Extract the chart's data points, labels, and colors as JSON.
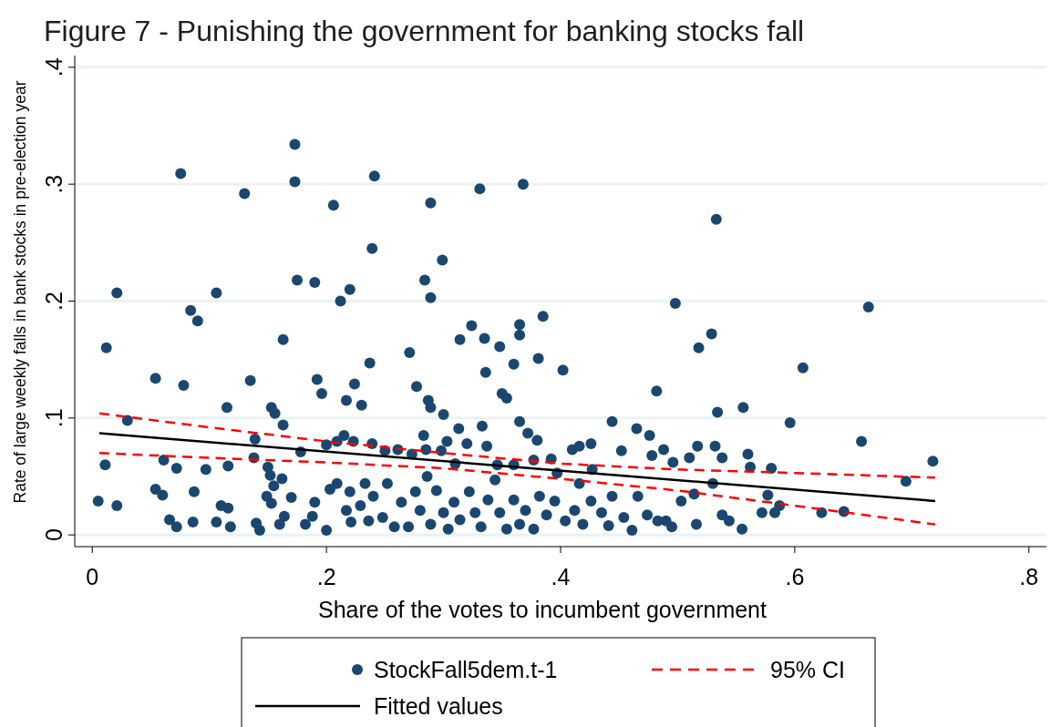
{
  "chart_data": {
    "type": "scatter",
    "title": "Figure 7 - Punishing the government for banking stocks fall",
    "xlabel": "Share of the votes to incumbent government",
    "ylabel": "Rate of large weekly falls in bank stocks in pre-election year",
    "xlim": [
      -0.015,
      0.815
    ],
    "ylim": [
      -0.01,
      0.41
    ],
    "xticks": [
      0,
      {
        "value": 0.2,
        "label": ".2"
      },
      {
        "value": 0.4,
        "label": ".4"
      },
      {
        "value": 0.6,
        "label": ".6"
      },
      {
        "value": 0.8,
        "label": ".8"
      }
    ],
    "yticks": [
      0,
      {
        "value": 0.1,
        "label": ".1"
      },
      {
        "value": 0.2,
        "label": ".2"
      },
      {
        "value": 0.3,
        "label": ".3"
      },
      {
        "value": 0.4,
        "label": ".4"
      }
    ],
    "grid": "y",
    "legend": "bottom",
    "series": [
      {
        "name": "StockFall5dem.t-1",
        "color": "#1a476f",
        "marker": "circle",
        "x": [
          0.0755,
          0.173,
          0.173,
          0.241,
          0.13,
          0.289,
          0.331,
          0.368,
          0.533,
          0.206,
          0.239,
          0.299,
          0.021,
          0.175,
          0.284,
          0.19,
          0.22,
          0.212,
          0.289,
          0.084,
          0.09,
          0.106,
          0.498,
          0.663,
          0.012,
          0.163,
          0.385,
          0.365,
          0.365,
          0.324,
          0.314,
          0.335,
          0.518,
          0.529,
          0.271,
          0.348,
          0.36,
          0.336,
          0.381,
          0.402,
          0.607,
          0.054,
          0.135,
          0.192,
          0.078,
          0.237,
          0.277,
          0.35,
          0.354,
          0.196,
          0.224,
          0.217,
          0.23,
          0.482,
          0.115,
          0.287,
          0.289,
          0.3,
          0.313,
          0.333,
          0.03,
          0.153,
          0.156,
          0.163,
          0.534,
          0.556,
          0.444,
          0.465,
          0.596,
          0.657,
          0.365,
          0.372,
          0.38,
          0.392,
          0.41,
          0.416,
          0.426,
          0.452,
          0.476,
          0.488,
          0.478,
          0.496,
          0.51,
          0.517,
          0.532,
          0.538,
          0.56,
          0.562,
          0.58,
          0.718,
          0.695,
          0.061,
          0.011,
          0.072,
          0.097,
          0.116,
          0.139,
          0.138,
          0.15,
          0.152,
          0.162,
          0.178,
          0.2,
          0.209,
          0.215,
          0.223,
          0.239,
          0.25,
          0.261,
          0.273,
          0.283,
          0.285,
          0.298,
          0.303,
          0.31,
          0.32,
          0.337,
          0.346,
          0.36,
          0.377,
          0.397,
          0.416,
          0.427,
          0.005,
          0.021,
          0.054,
          0.06,
          0.072,
          0.066,
          0.087,
          0.086,
          0.106,
          0.11,
          0.116,
          0.118,
          0.14,
          0.143,
          0.149,
          0.153,
          0.155,
          0.16,
          0.164,
          0.17,
          0.182,
          0.188,
          0.19,
          0.2,
          0.203,
          0.209,
          0.22,
          0.217,
          0.221,
          0.229,
          0.233,
          0.236,
          0.24,
          0.248,
          0.252,
          0.258,
          0.264,
          0.27,
          0.276,
          0.28,
          0.286,
          0.289,
          0.294,
          0.3,
          0.304,
          0.309,
          0.314,
          0.322,
          0.327,
          0.332,
          0.338,
          0.344,
          0.348,
          0.354,
          0.36,
          0.365,
          0.37,
          0.377,
          0.382,
          0.388,
          0.395,
          0.404,
          0.412,
          0.419,
          0.426,
          0.435,
          0.441,
          0.444,
          0.454,
          0.461,
          0.466,
          0.474,
          0.483,
          0.49,
          0.495,
          0.503,
          0.514,
          0.516,
          0.53,
          0.538,
          0.544,
          0.555,
          0.572,
          0.577,
          0.583,
          0.623,
          0.642,
          0.587
        ],
        "values": [
          0.309,
          0.334,
          0.302,
          0.307,
          0.292,
          0.284,
          0.296,
          0.3,
          0.27,
          0.282,
          0.245,
          0.235,
          0.207,
          0.218,
          0.218,
          0.216,
          0.21,
          0.2,
          0.203,
          0.192,
          0.183,
          0.207,
          0.198,
          0.195,
          0.16,
          0.167,
          0.187,
          0.18,
          0.171,
          0.179,
          0.167,
          0.168,
          0.16,
          0.172,
          0.156,
          0.161,
          0.146,
          0.139,
          0.151,
          0.141,
          0.143,
          0.134,
          0.132,
          0.133,
          0.128,
          0.147,
          0.127,
          0.121,
          0.117,
          0.121,
          0.129,
          0.115,
          0.111,
          0.123,
          0.109,
          0.115,
          0.109,
          0.103,
          0.091,
          0.093,
          0.098,
          0.109,
          0.104,
          0.094,
          0.105,
          0.109,
          0.097,
          0.091,
          0.096,
          0.08,
          0.097,
          0.087,
          0.081,
          0.065,
          0.073,
          0.076,
          0.078,
          0.072,
          0.085,
          0.073,
          0.068,
          0.062,
          0.066,
          0.076,
          0.076,
          0.066,
          0.069,
          0.058,
          0.057,
          0.063,
          0.046,
          0.064,
          0.06,
          0.057,
          0.056,
          0.059,
          0.082,
          0.066,
          0.058,
          0.051,
          0.048,
          0.071,
          0.077,
          0.08,
          0.085,
          0.08,
          0.078,
          0.072,
          0.073,
          0.069,
          0.085,
          0.073,
          0.072,
          0.08,
          0.061,
          0.078,
          0.076,
          0.06,
          0.06,
          0.064,
          0.053,
          0.044,
          0.056,
          0.029,
          0.025,
          0.039,
          0.034,
          0.007,
          0.013,
          0.037,
          0.011,
          0.011,
          0.025,
          0.023,
          0.007,
          0.01,
          0.004,
          0.033,
          0.027,
          0.042,
          0.009,
          0.016,
          0.032,
          0.009,
          0.016,
          0.028,
          0.004,
          0.039,
          0.044,
          0.037,
          0.021,
          0.011,
          0.025,
          0.044,
          0.012,
          0.033,
          0.015,
          0.044,
          0.007,
          0.028,
          0.007,
          0.037,
          0.021,
          0.05,
          0.009,
          0.038,
          0.019,
          0.005,
          0.028,
          0.013,
          0.037,
          0.019,
          0.007,
          0.03,
          0.047,
          0.019,
          0.005,
          0.03,
          0.009,
          0.021,
          0.005,
          0.033,
          0.017,
          0.029,
          0.012,
          0.021,
          0.009,
          0.029,
          0.019,
          0.008,
          0.033,
          0.015,
          0.004,
          0.033,
          0.017,
          0.012,
          0.012,
          0.007,
          0.029,
          0.035,
          0.009,
          0.044,
          0.017,
          0.012,
          0.005,
          0.019,
          0.034,
          0.019,
          0.019,
          0.02,
          0.025
        ]
      },
      {
        "type": "line",
        "name": "95% CI",
        "color": "#ff0000",
        "line_style": "dashed",
        "marker": "none",
        "x": [
          0.006,
          0.1,
          0.2,
          0.3,
          0.4,
          0.5,
          0.6,
          0.72
        ],
        "values": [
          0.104,
          0.092,
          0.08,
          0.07,
          0.061,
          0.056,
          0.053,
          0.049
        ]
      },
      {
        "type": "line",
        "name": "Fitted values",
        "color": "#000000",
        "line_style": "solid",
        "marker": "none",
        "x": [
          0.006,
          0.72
        ],
        "values": [
          0.087,
          0.029
        ]
      },
      {
        "type": "line",
        "color": "#ff0000",
        "line_style": "dashed",
        "marker": "none",
        "x": [
          0.006,
          0.1,
          0.2,
          0.3,
          0.4,
          0.5,
          0.6,
          0.72
        ],
        "values": [
          0.07,
          0.066,
          0.062,
          0.057,
          0.048,
          0.038,
          0.025,
          0.009
        ]
      }
    ]
  }
}
